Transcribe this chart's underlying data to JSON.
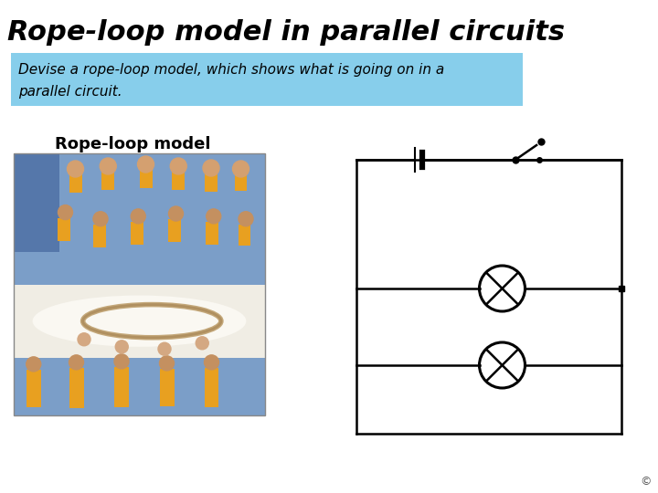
{
  "title": "Rope-loop model in parallel circuits",
  "subtitle_line1": "Devise a rope-loop model, which shows what is going on in a",
  "subtitle_line2": "parallel circuit.",
  "subtitle_bg": "#87CEEB",
  "rope_label": "Rope-loop model",
  "bg_color": "#FFFFFF",
  "title_color": "#000000",
  "subtitle_color": "#000000",
  "circuit_line_color": "#000000",
  "circuit_lw": 1.8,
  "copyright_symbol": "©",
  "photo_colors": {
    "top_blue": "#7B9EC8",
    "mid_light": "#E8E0D0",
    "bot_blue": "#7B9EC8",
    "shirt_yellow": "#E8A020",
    "table_white": "#F8F5EE",
    "rope_tan": "#C8B89A",
    "skin": "#D4A882"
  }
}
